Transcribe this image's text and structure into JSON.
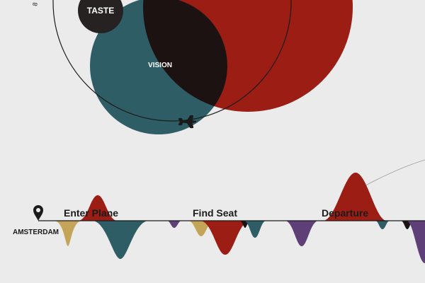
{
  "colors": {
    "background": "#ebebeb",
    "red": "#9c1d14",
    "teal": "#2f5d66",
    "gold": "#c4a557",
    "purple": "#5f3f77",
    "dark": "#1c1212",
    "ink": "#1b1b1b"
  },
  "bubbles": {
    "taste": "TASTE",
    "vision": "VISION"
  },
  "top_marker": "8",
  "origin": {
    "city": "AMSTERDAM",
    "icon": "map-pin-icon"
  },
  "plane_icon": "airplane-icon",
  "phases": [
    {
      "label": "Enter Plane"
    },
    {
      "label": "Find Seat"
    },
    {
      "label": "Departure"
    }
  ]
}
